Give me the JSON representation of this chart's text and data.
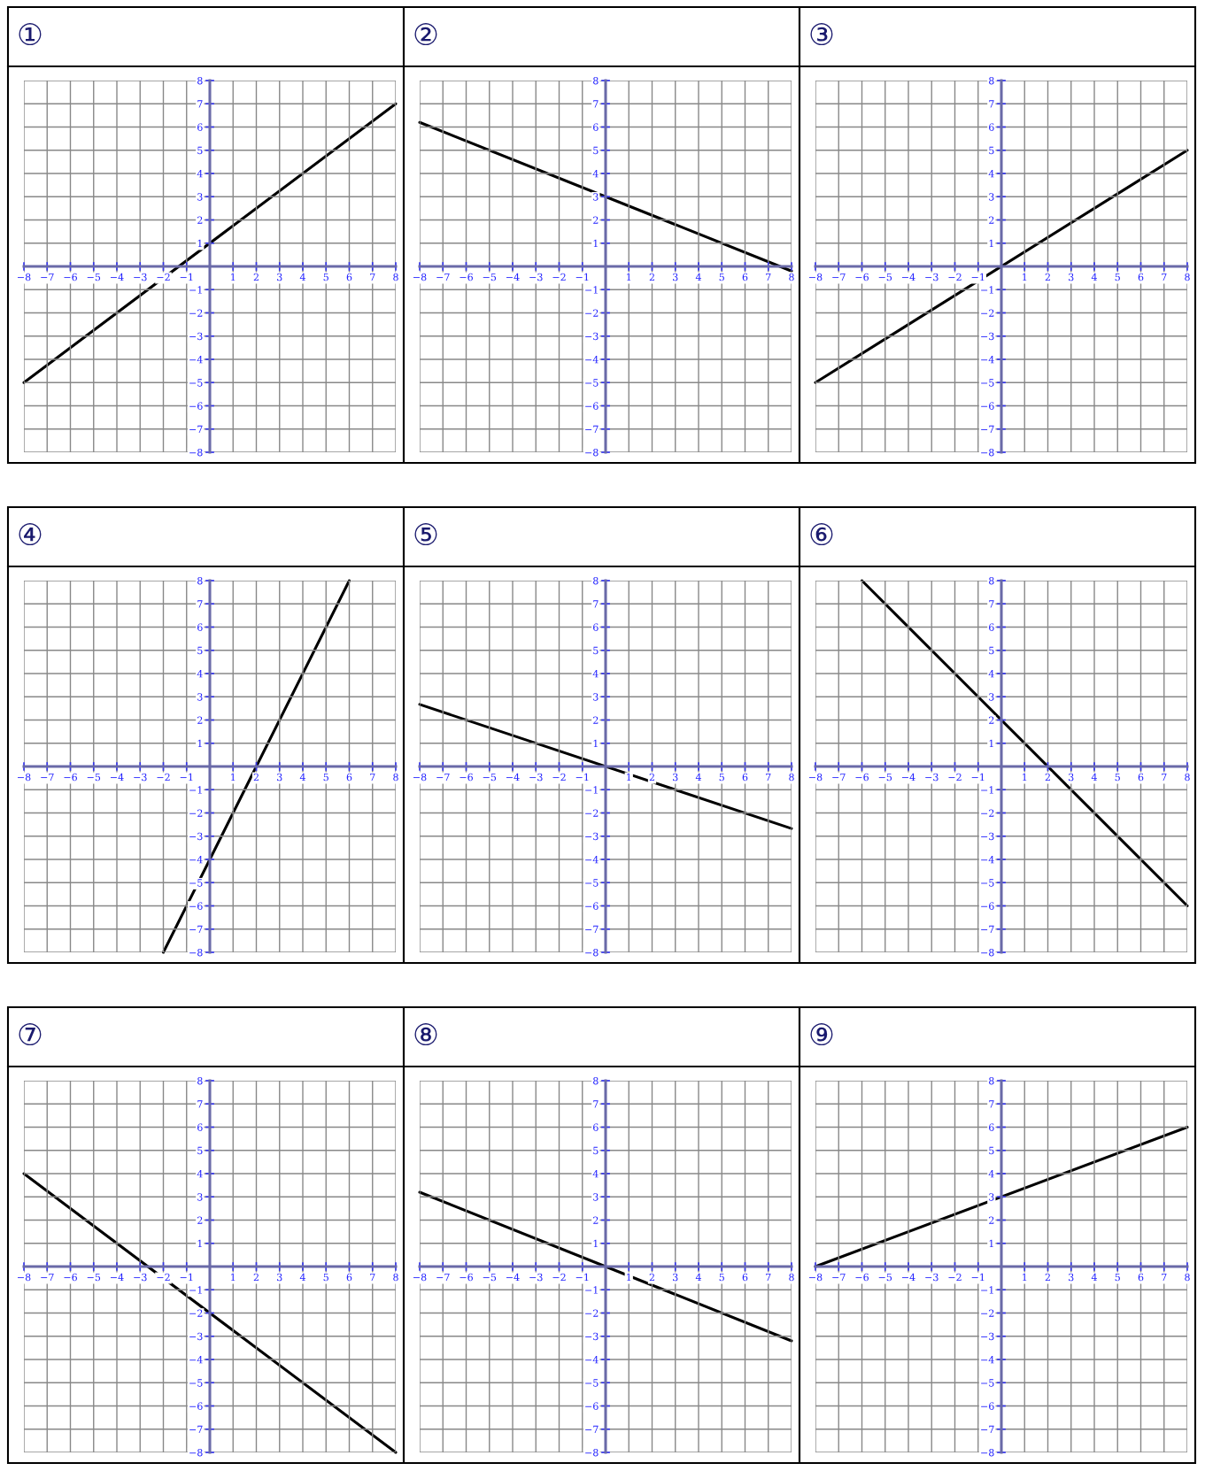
{
  "chart_data": [
    {
      "type": "line",
      "title": "①",
      "series": [
        {
          "color": "#000000",
          "x": [
            -8,
            8
          ],
          "values": [
            -5,
            7
          ]
        }
      ],
      "xlim": [
        -8,
        8
      ],
      "ylim": [
        -8,
        8
      ],
      "xticks": [
        {
          "value": -8,
          "label": "−8"
        },
        {
          "value": -7,
          "label": "−7"
        },
        {
          "value": -6,
          "label": "−6"
        },
        {
          "value": -5,
          "label": "−5"
        },
        {
          "value": -4,
          "label": "−4"
        },
        {
          "value": -3,
          "label": "−3"
        },
        {
          "value": -2,
          "label": "−2"
        },
        {
          "value": -1,
          "label": "−1"
        },
        1,
        2,
        3,
        4,
        5,
        6,
        7,
        8
      ],
      "yticks": [
        {
          "value": -8,
          "label": "−8"
        },
        {
          "value": -7,
          "label": "−7"
        },
        {
          "value": -6,
          "label": "−6"
        },
        {
          "value": -5,
          "label": "−5"
        },
        {
          "value": -4,
          "label": "−4"
        },
        {
          "value": -3,
          "label": "−3"
        },
        {
          "value": -2,
          "label": "−2"
        },
        {
          "value": -1,
          "label": "−1"
        },
        1,
        2,
        3,
        4,
        5,
        6,
        7,
        8
      ],
      "grid": true,
      "line_style": "solid"
    },
    {
      "type": "line",
      "title": "②",
      "series": [
        {
          "color": "#000000",
          "x": [
            -8,
            8
          ],
          "values": [
            6.2,
            -0.2
          ]
        }
      ],
      "xlim": [
        -8,
        8
      ],
      "ylim": [
        -8,
        8
      ],
      "xticks": [
        {
          "value": -8,
          "label": "−8"
        },
        {
          "value": -7,
          "label": "−7"
        },
        {
          "value": -6,
          "label": "−6"
        },
        {
          "value": -5,
          "label": "−5"
        },
        {
          "value": -4,
          "label": "−4"
        },
        {
          "value": -3,
          "label": "−3"
        },
        {
          "value": -2,
          "label": "−2"
        },
        {
          "value": -1,
          "label": "−1"
        },
        1,
        2,
        3,
        4,
        5,
        6,
        7,
        8
      ],
      "yticks": [
        {
          "value": -8,
          "label": "−8"
        },
        {
          "value": -7,
          "label": "−7"
        },
        {
          "value": -6,
          "label": "−6"
        },
        {
          "value": -5,
          "label": "−5"
        },
        {
          "value": -4,
          "label": "−4"
        },
        {
          "value": -3,
          "label": "−3"
        },
        {
          "value": -2,
          "label": "−2"
        },
        {
          "value": -1,
          "label": "−1"
        },
        1,
        2,
        3,
        4,
        5,
        6,
        7,
        8
      ],
      "grid": true,
      "line_style": "solid"
    },
    {
      "type": "line",
      "title": "③",
      "series": [
        {
          "color": "#000000",
          "x": [
            -8,
            8
          ],
          "values": [
            -5,
            5
          ]
        }
      ],
      "xlim": [
        -8,
        8
      ],
      "ylim": [
        -8,
        8
      ],
      "xticks": [
        {
          "value": -8,
          "label": "−8"
        },
        {
          "value": -7,
          "label": "−7"
        },
        {
          "value": -6,
          "label": "−6"
        },
        {
          "value": -5,
          "label": "−5"
        },
        {
          "value": -4,
          "label": "−4"
        },
        {
          "value": -3,
          "label": "−3"
        },
        {
          "value": -2,
          "label": "−2"
        },
        {
          "value": -1,
          "label": "−1"
        },
        1,
        2,
        3,
        4,
        5,
        6,
        7,
        8
      ],
      "yticks": [
        {
          "value": -8,
          "label": "−8"
        },
        {
          "value": -7,
          "label": "−7"
        },
        {
          "value": -6,
          "label": "−6"
        },
        {
          "value": -5,
          "label": "−5"
        },
        {
          "value": -4,
          "label": "−4"
        },
        {
          "value": -3,
          "label": "−3"
        },
        {
          "value": -2,
          "label": "−2"
        },
        {
          "value": -1,
          "label": "−1"
        },
        1,
        2,
        3,
        4,
        5,
        6,
        7,
        8
      ],
      "grid": true,
      "line_style": "solid"
    },
    {
      "type": "line",
      "title": "④",
      "series": [
        {
          "color": "#000000",
          "x": [
            -2,
            6
          ],
          "values": [
            -8,
            8
          ]
        }
      ],
      "xlim": [
        -8,
        8
      ],
      "ylim": [
        -8,
        8
      ],
      "xticks": [
        {
          "value": -8,
          "label": "−8"
        },
        {
          "value": -7,
          "label": "−7"
        },
        {
          "value": -6,
          "label": "−6"
        },
        {
          "value": -5,
          "label": "−5"
        },
        {
          "value": -4,
          "label": "−4"
        },
        {
          "value": -3,
          "label": "−3"
        },
        {
          "value": -2,
          "label": "−2"
        },
        {
          "value": -1,
          "label": "−1"
        },
        1,
        2,
        3,
        4,
        5,
        6,
        7,
        8
      ],
      "yticks": [
        {
          "value": -8,
          "label": "−8"
        },
        {
          "value": -7,
          "label": "−7"
        },
        {
          "value": -6,
          "label": "−6"
        },
        {
          "value": -5,
          "label": "−5"
        },
        {
          "value": -4,
          "label": "−4"
        },
        {
          "value": -3,
          "label": "−3"
        },
        {
          "value": -2,
          "label": "−2"
        },
        {
          "value": -1,
          "label": "−1"
        },
        1,
        2,
        3,
        4,
        5,
        6,
        7,
        8
      ],
      "grid": true,
      "line_style": "solid"
    },
    {
      "type": "line",
      "title": "⑤",
      "series": [
        {
          "color": "#000000",
          "x": [
            -8,
            8
          ],
          "values": [
            2.67,
            -2.67
          ]
        }
      ],
      "xlim": [
        -8,
        8
      ],
      "ylim": [
        -8,
        8
      ],
      "xticks": [
        {
          "value": -8,
          "label": "−8"
        },
        {
          "value": -7,
          "label": "−7"
        },
        {
          "value": -6,
          "label": "−6"
        },
        {
          "value": -5,
          "label": "−5"
        },
        {
          "value": -4,
          "label": "−4"
        },
        {
          "value": -3,
          "label": "−3"
        },
        {
          "value": -2,
          "label": "−2"
        },
        {
          "value": -1,
          "label": "−1"
        },
        1,
        2,
        3,
        4,
        5,
        6,
        7,
        8
      ],
      "yticks": [
        {
          "value": -8,
          "label": "−8"
        },
        {
          "value": -7,
          "label": "−7"
        },
        {
          "value": -6,
          "label": "−6"
        },
        {
          "value": -5,
          "label": "−5"
        },
        {
          "value": -4,
          "label": "−4"
        },
        {
          "value": -3,
          "label": "−3"
        },
        {
          "value": -2,
          "label": "−2"
        },
        {
          "value": -1,
          "label": "−1"
        },
        1,
        2,
        3,
        4,
        5,
        6,
        7,
        8
      ],
      "grid": true,
      "line_style": "solid"
    },
    {
      "type": "line",
      "title": "⑥",
      "series": [
        {
          "color": "#000000",
          "x": [
            -6,
            8
          ],
          "values": [
            8,
            -6
          ]
        }
      ],
      "xlim": [
        -8,
        8
      ],
      "ylim": [
        -8,
        8
      ],
      "xticks": [
        {
          "value": -8,
          "label": "−8"
        },
        {
          "value": -7,
          "label": "−7"
        },
        {
          "value": -6,
          "label": "−6"
        },
        {
          "value": -5,
          "label": "−5"
        },
        {
          "value": -4,
          "label": "−4"
        },
        {
          "value": -3,
          "label": "−3"
        },
        {
          "value": -2,
          "label": "−2"
        },
        {
          "value": -1,
          "label": "−1"
        },
        1,
        2,
        3,
        4,
        5,
        6,
        7,
        8
      ],
      "yticks": [
        {
          "value": -8,
          "label": "−8"
        },
        {
          "value": -7,
          "label": "−7"
        },
        {
          "value": -6,
          "label": "−6"
        },
        {
          "value": -5,
          "label": "−5"
        },
        {
          "value": -4,
          "label": "−4"
        },
        {
          "value": -3,
          "label": "−3"
        },
        {
          "value": -2,
          "label": "−2"
        },
        {
          "value": -1,
          "label": "−1"
        },
        1,
        2,
        3,
        4,
        5,
        6,
        7,
        8
      ],
      "grid": true,
      "line_style": "solid"
    },
    {
      "type": "line",
      "title": "⑦",
      "series": [
        {
          "color": "#000000",
          "x": [
            -8,
            8
          ],
          "values": [
            4,
            -8
          ]
        }
      ],
      "xlim": [
        -8,
        8
      ],
      "ylim": [
        -8,
        8
      ],
      "xticks": [
        {
          "value": -8,
          "label": "−8"
        },
        {
          "value": -7,
          "label": "−7"
        },
        {
          "value": -6,
          "label": "−6"
        },
        {
          "value": -5,
          "label": "−5"
        },
        {
          "value": -4,
          "label": "−4"
        },
        {
          "value": -3,
          "label": "−3"
        },
        {
          "value": -2,
          "label": "−2"
        },
        {
          "value": -1,
          "label": "−1"
        },
        1,
        2,
        3,
        4,
        5,
        6,
        7,
        8
      ],
      "yticks": [
        {
          "value": -8,
          "label": "−8"
        },
        {
          "value": -7,
          "label": "−7"
        },
        {
          "value": -6,
          "label": "−6"
        },
        {
          "value": -5,
          "label": "−5"
        },
        {
          "value": -4,
          "label": "−4"
        },
        {
          "value": -3,
          "label": "−3"
        },
        {
          "value": -2,
          "label": "−2"
        },
        {
          "value": -1,
          "label": "−1"
        },
        1,
        2,
        3,
        4,
        5,
        6,
        7,
        8
      ],
      "grid": true,
      "line_style": "solid"
    },
    {
      "type": "line",
      "title": "⑧",
      "series": [
        {
          "color": "#000000",
          "x": [
            -8,
            8
          ],
          "values": [
            3.2,
            -3.2
          ]
        }
      ],
      "xlim": [
        -8,
        8
      ],
      "ylim": [
        -8,
        8
      ],
      "xticks": [
        {
          "value": -8,
          "label": "−8"
        },
        {
          "value": -7,
          "label": "−7"
        },
        {
          "value": -6,
          "label": "−6"
        },
        {
          "value": -5,
          "label": "−5"
        },
        {
          "value": -4,
          "label": "−4"
        },
        {
          "value": -3,
          "label": "−3"
        },
        {
          "value": -2,
          "label": "−2"
        },
        {
          "value": -1,
          "label": "−1"
        },
        1,
        2,
        3,
        4,
        5,
        6,
        7,
        8
      ],
      "yticks": [
        {
          "value": -8,
          "label": "−8"
        },
        {
          "value": -7,
          "label": "−7"
        },
        {
          "value": -6,
          "label": "−6"
        },
        {
          "value": -5,
          "label": "−5"
        },
        {
          "value": -4,
          "label": "−4"
        },
        {
          "value": -3,
          "label": "−3"
        },
        {
          "value": -2,
          "label": "−2"
        },
        {
          "value": -1,
          "label": "−1"
        },
        1,
        2,
        3,
        4,
        5,
        6,
        7,
        8
      ],
      "grid": true,
      "line_style": "solid"
    },
    {
      "type": "line",
      "title": "⑨",
      "series": [
        {
          "color": "#000000",
          "x": [
            -8,
            8
          ],
          "values": [
            0,
            6
          ]
        }
      ],
      "xlim": [
        -8,
        8
      ],
      "ylim": [
        -8,
        8
      ],
      "xticks": [
        {
          "value": -8,
          "label": "−8"
        },
        {
          "value": -7,
          "label": "−7"
        },
        {
          "value": -6,
          "label": "−6"
        },
        {
          "value": -5,
          "label": "−5"
        },
        {
          "value": -4,
          "label": "−4"
        },
        {
          "value": -3,
          "label": "−3"
        },
        {
          "value": -2,
          "label": "−2"
        },
        {
          "value": -1,
          "label": "−1"
        },
        1,
        2,
        3,
        4,
        5,
        6,
        7,
        8
      ],
      "yticks": [
        {
          "value": -8,
          "label": "−8"
        },
        {
          "value": -7,
          "label": "−7"
        },
        {
          "value": -6,
          "label": "−6"
        },
        {
          "value": -5,
          "label": "−5"
        },
        {
          "value": -4,
          "label": "−4"
        },
        {
          "value": -3,
          "label": "−3"
        },
        {
          "value": -2,
          "label": "−2"
        },
        {
          "value": -1,
          "label": "−1"
        },
        1,
        2,
        3,
        4,
        5,
        6,
        7,
        8
      ],
      "grid": true,
      "line_style": "solid"
    }
  ]
}
